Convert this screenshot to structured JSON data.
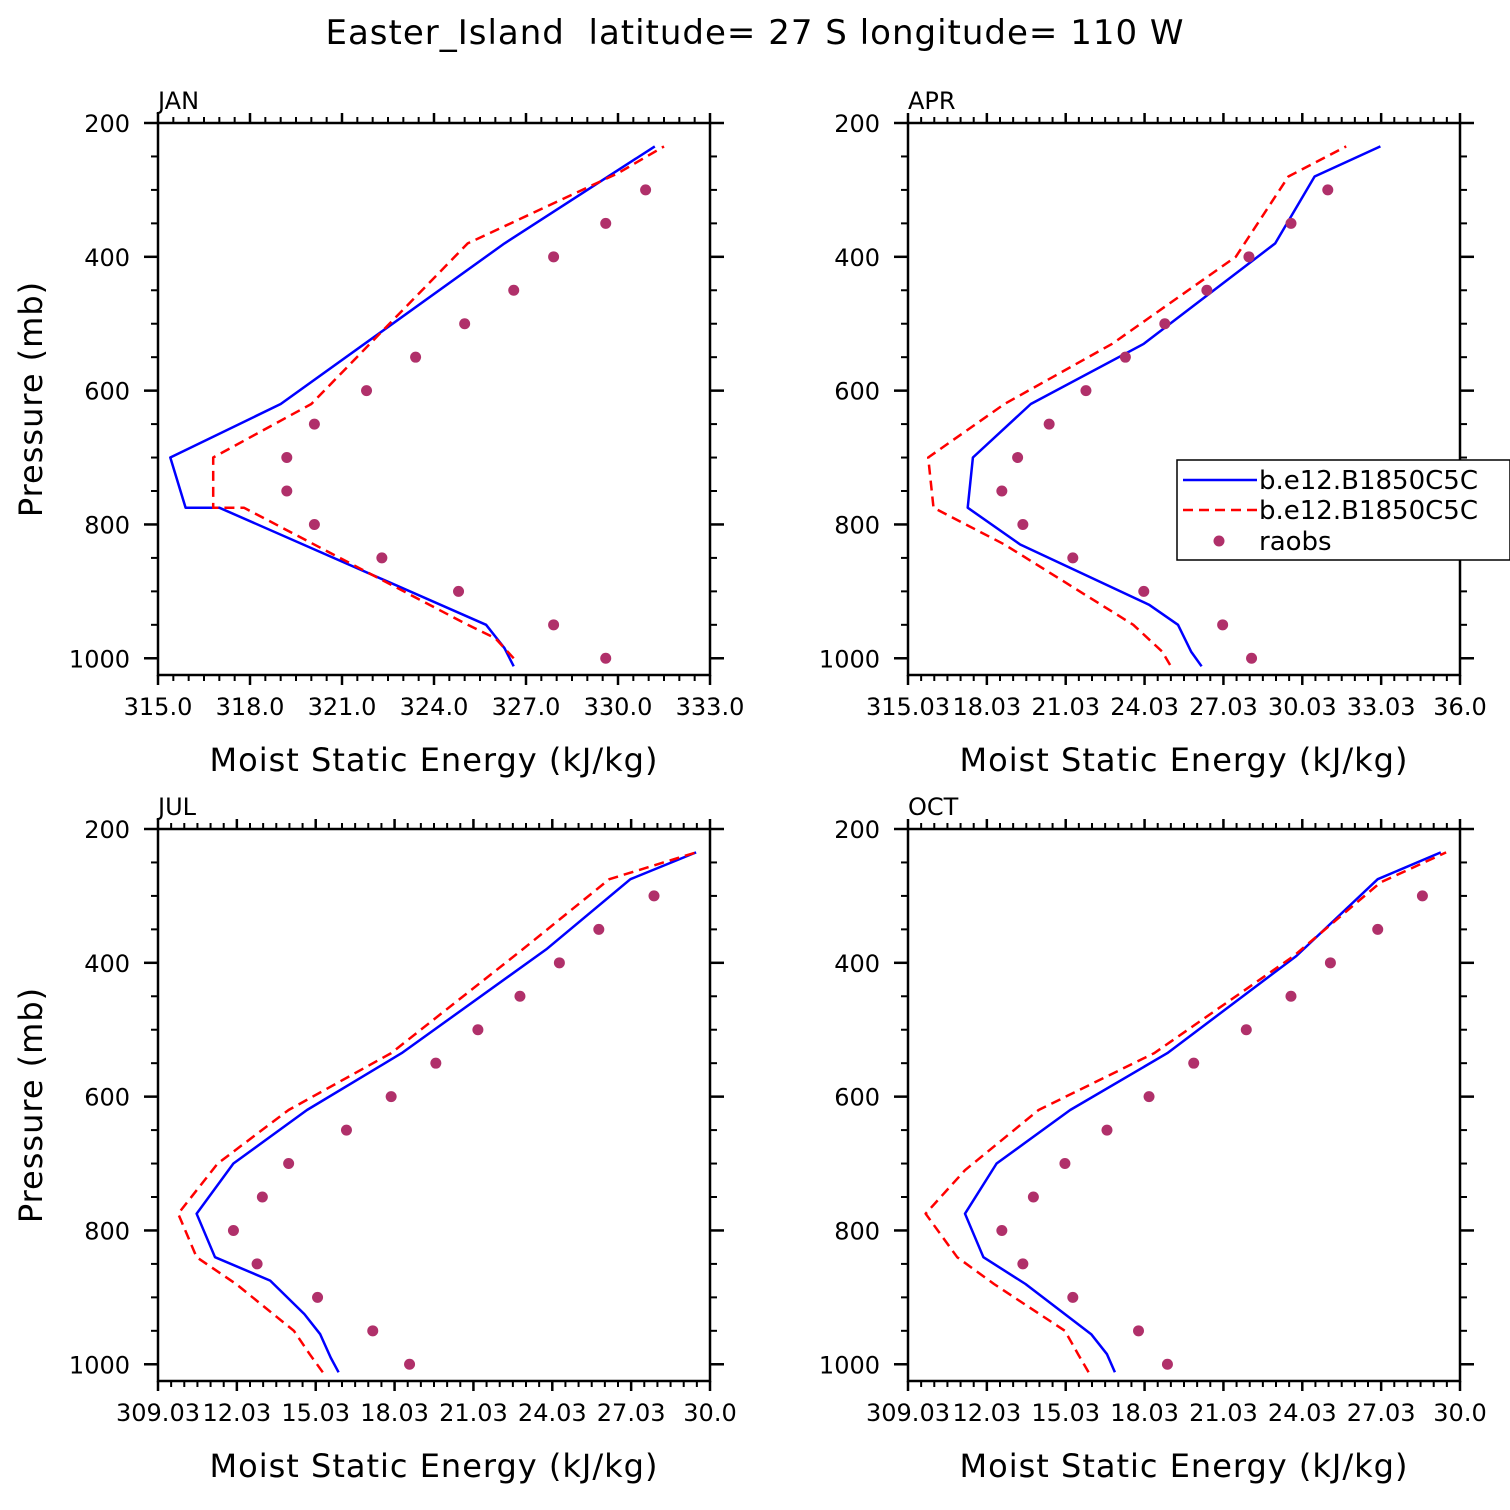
{
  "title": "Easter_Island  latitude= 27 S longitude= 110 W",
  "colors": {
    "series1": "#0000ff",
    "series2": "#ff0000",
    "raobs": "#b0306a",
    "axis": "#000000"
  },
  "legend": {
    "placement": "right-middle of APR panel",
    "entries": [
      "b.e12.B1850C5C",
      "b.e12.B1850C5C",
      "raobs"
    ]
  },
  "chart_data": [
    {
      "type": "line",
      "panel_label": "JAN",
      "xlabel": "Moist Static Energy (kJ/kg)",
      "ylabel": "Pressure (mb)",
      "xlim": [
        315.0,
        333.0
      ],
      "xticks": [
        "315.0",
        "318.0",
        "321.0",
        "324.0",
        "327.0",
        "330.0",
        "333.0"
      ],
      "ylim": [
        1025,
        200
      ],
      "yticks": [
        "200",
        "400",
        "600",
        "800",
        "1000"
      ],
      "series": [
        {
          "name": "b.e12.B1850C5C",
          "style": "solid",
          "x": [
            326.6,
            326.3,
            325.7,
            317.0,
            315.9,
            315.4,
            319.0,
            326.3,
            331.2
          ],
          "p": [
            1012,
            985,
            950,
            775,
            775,
            700,
            620,
            380,
            235
          ]
        },
        {
          "name": "b.e12.B1850C5C",
          "style": "dashed",
          "x": [
            326.6,
            326.0,
            325.1,
            317.8,
            316.8,
            316.8,
            320.0,
            325.1,
            330.0,
            331.5
          ],
          "p": [
            1000,
            970,
            950,
            775,
            775,
            700,
            620,
            380,
            275,
            235
          ]
        },
        {
          "name": "raobs",
          "style": "points",
          "x": [
            329.6,
            327.9,
            324.8,
            322.3,
            320.1,
            319.2,
            319.2,
            320.1,
            321.8,
            323.4,
            325.0,
            326.6,
            327.9,
            329.6,
            330.9
          ],
          "p": [
            1000,
            950,
            900,
            850,
            800,
            750,
            700,
            650,
            600,
            550,
            500,
            450,
            400,
            350,
            300
          ]
        }
      ]
    },
    {
      "type": "line",
      "panel_label": "APR",
      "xlabel": "Moist Static Energy (kJ/kg)",
      "ylabel": "",
      "xlim": [
        315.03,
        336.03
      ],
      "xticks": [
        "315.03",
        "18.03",
        "21.03",
        "24.03",
        "27.03",
        "30.03",
        "33.03",
        "36.0"
      ],
      "ylim": [
        1025,
        200
      ],
      "yticks": [
        "200",
        "400",
        "600",
        "800",
        "1000"
      ],
      "series": [
        {
          "name": "b.e12.B1850C5C",
          "style": "solid",
          "x": [
            326.2,
            325.8,
            325.3,
            324.2,
            319.3,
            317.3,
            317.5,
            319.7,
            324.0,
            329.0,
            330.5,
            333.0
          ],
          "p": [
            1012,
            990,
            950,
            920,
            830,
            775,
            700,
            620,
            530,
            380,
            280,
            235
          ]
        },
        {
          "name": "b.e12.B1850C5C",
          "style": "dashed",
          "x": [
            325.0,
            324.7,
            323.6,
            318.7,
            316.0,
            315.8,
            318.7,
            322.8,
            327.5,
            329.5,
            331.7
          ],
          "p": [
            1010,
            990,
            950,
            830,
            775,
            700,
            620,
            530,
            400,
            280,
            235
          ]
        },
        {
          "name": "raobs",
          "style": "points",
          "x": [
            328.1,
            327.0,
            324.0,
            321.3,
            319.4,
            318.6,
            319.2,
            320.4,
            321.8,
            323.3,
            324.8,
            326.4,
            328.0,
            329.6,
            331.0
          ],
          "p": [
            1000,
            950,
            900,
            850,
            800,
            750,
            700,
            650,
            600,
            550,
            500,
            450,
            400,
            350,
            300
          ]
        }
      ]
    },
    {
      "type": "line",
      "panel_label": "JUL",
      "xlabel": "Moist Static Energy (kJ/kg)",
      "ylabel": "Pressure (mb)",
      "xlim": [
        309.03,
        330.03
      ],
      "xticks": [
        "309.03",
        "12.03",
        "15.03",
        "18.03",
        "21.03",
        "24.03",
        "27.03",
        "30.0"
      ],
      "ylim": [
        1025,
        200
      ],
      "yticks": [
        "200",
        "400",
        "600",
        "800",
        "1000"
      ],
      "series": [
        {
          "name": "b.e12.B1850C5C",
          "style": "solid",
          "x": [
            315.9,
            315.6,
            315.2,
            314.6,
            313.3,
            311.2,
            310.5,
            311.9,
            314.7,
            318.3,
            323.8,
            327.0,
            329.5
          ],
          "p": [
            1012,
            990,
            955,
            925,
            875,
            840,
            775,
            700,
            620,
            535,
            380,
            275,
            235
          ]
        },
        {
          "name": "b.e12.B1850C5C",
          "style": "dashed",
          "x": [
            315.3,
            314.8,
            314.2,
            312.0,
            310.5,
            309.8,
            311.3,
            314.0,
            317.9,
            322.9,
            326.2,
            329.5
          ],
          "p": [
            1012,
            985,
            950,
            880,
            840,
            775,
            700,
            620,
            535,
            380,
            275,
            235
          ]
        },
        {
          "name": "raobs",
          "style": "points",
          "x": [
            318.6,
            317.2,
            315.1,
            312.8,
            311.9,
            313.0,
            314.0,
            316.2,
            317.9,
            319.6,
            321.2,
            322.8,
            324.3,
            325.8,
            327.9
          ],
          "p": [
            1000,
            950,
            900,
            850,
            800,
            750,
            700,
            650,
            600,
            550,
            500,
            450,
            400,
            350,
            300
          ]
        }
      ]
    },
    {
      "type": "line",
      "panel_label": "OCT",
      "xlabel": "Moist Static Energy (kJ/kg)",
      "ylabel": "",
      "xlim": [
        309.03,
        330.03
      ],
      "xticks": [
        "309.03",
        "12.03",
        "15.03",
        "18.03",
        "21.03",
        "24.03",
        "27.03",
        "30.0"
      ],
      "ylim": [
        1025,
        200
      ],
      "yticks": [
        "200",
        "400",
        "600",
        "800",
        "1000"
      ],
      "series": [
        {
          "name": "b.e12.B1850C5C",
          "style": "solid",
          "x": [
            316.9,
            316.6,
            316.0,
            315.0,
            313.5,
            311.9,
            311.2,
            312.4,
            315.2,
            318.9,
            323.8,
            326.9,
            329.3
          ],
          "p": [
            1012,
            985,
            955,
            925,
            880,
            840,
            775,
            700,
            620,
            535,
            390,
            275,
            235
          ]
        },
        {
          "name": "b.e12.B1850C5C",
          "style": "dashed",
          "x": [
            315.9,
            315.5,
            315.0,
            312.3,
            310.9,
            309.7,
            311.2,
            314.0,
            318.4,
            323.7,
            327.0,
            329.5
          ],
          "p": [
            1012,
            985,
            950,
            880,
            840,
            775,
            710,
            620,
            535,
            390,
            280,
            235
          ]
        },
        {
          "name": "raobs",
          "style": "points",
          "x": [
            318.9,
            317.8,
            315.3,
            313.4,
            312.6,
            313.8,
            315.0,
            316.6,
            318.2,
            319.9,
            321.9,
            323.6,
            325.1,
            326.9,
            328.6
          ],
          "p": [
            1000,
            950,
            900,
            850,
            800,
            750,
            700,
            650,
            600,
            550,
            500,
            450,
            400,
            350,
            300
          ]
        }
      ]
    }
  ]
}
